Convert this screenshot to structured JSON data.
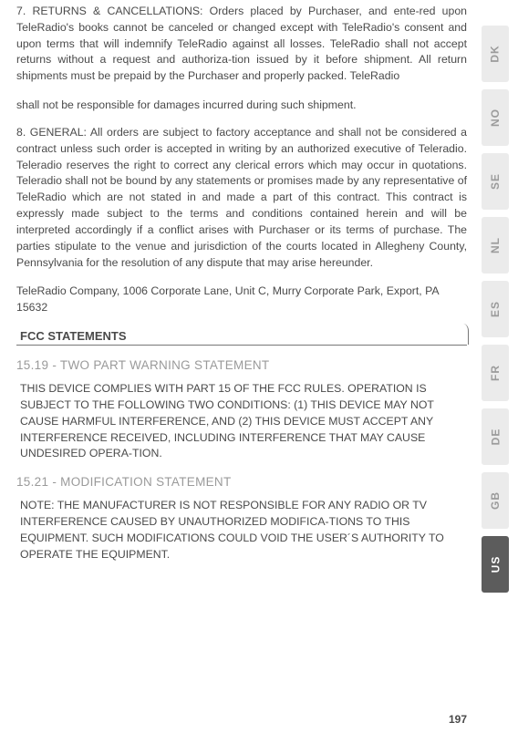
{
  "paragraphs": {
    "p1": "7. RETURNS & CANCELLATIONS: Orders placed by Purchaser, and ente-red upon TeleRadio's books cannot be canceled or changed except with TeleRadio's consent and upon terms that will indemnify TeleRadio against all losses. TeleRadio shall not accept returns without a request and authoriza-tion issued by it before shipment.  All return shipments must be prepaid by the Purchaser and properly packed. TeleRadio",
    "p2": "shall not be responsible for damages incurred during such shipment.",
    "p3": "8. GENERAL:  All orders are subject to factory acceptance and shall not be considered a contract unless such order is accepted in writing by an authorized executive of Teleradio. Teleradio reserves the right to correct any clerical errors which may occur in quotations. Teleradio shall not be bound by any statements or promises made by any representative of TeleRadio which are not stated in and made a part of this contract. This contract is expressly made subject to the terms and conditions contained herein and will be interpreted accordingly if a conflict arises with Purchaser or its terms of purchase. The parties stipulate to the venue and jurisdiction of the courts located in Allegheny County, Pennsylvania for the resolution of any dispute that may arise hereunder.",
    "p4": "TeleRadio Company, 1006 Corporate Lane, Unit C, Murry Corporate Park, Export, PA 15632"
  },
  "section_title": "FCC STATEMENTS",
  "sub1": "15.19 - TWO PART WARNING STATEMENT",
  "stmt1": "THIS DEVICE COMPLIES WITH PART 15 OF THE FCC RULES. OPERATION IS SUBJECT TO THE FOLLOWING  TWO CONDITIONS: (1) THIS DEVICE MAY NOT CAUSE HARMFUL INTERFERENCE, AND (2) THIS DEVICE MUST ACCEPT ANY INTERFERENCE RECEIVED, INCLUDING INTERFERENCE THAT MAY CAUSE UNDESIRED OPERA-TION.",
  "sub2": "15.21 - MODIFICATION STATEMENT",
  "stmt2": "NOTE: THE MANUFACTURER IS NOT RESPONSIBLE FOR ANY RADIO OR TV INTERFERENCE CAUSED BY UNAUTHORIZED MODIFICA-TIONS TO THIS EQUIPMENT. SUCH MODIFICATIONS COULD VOID THE USER´S AUTHORITY TO OPERATE THE EQUIPMENT.",
  "page_number": "197",
  "tabs": [
    {
      "label": "DK",
      "active": false
    },
    {
      "label": "NO",
      "active": false
    },
    {
      "label": "SE",
      "active": false
    },
    {
      "label": "NL",
      "active": false
    },
    {
      "label": "ES",
      "active": false
    },
    {
      "label": "FR",
      "active": false
    },
    {
      "label": "DE",
      "active": false
    },
    {
      "label": "GB",
      "active": false
    },
    {
      "label": "US",
      "active": true
    }
  ]
}
